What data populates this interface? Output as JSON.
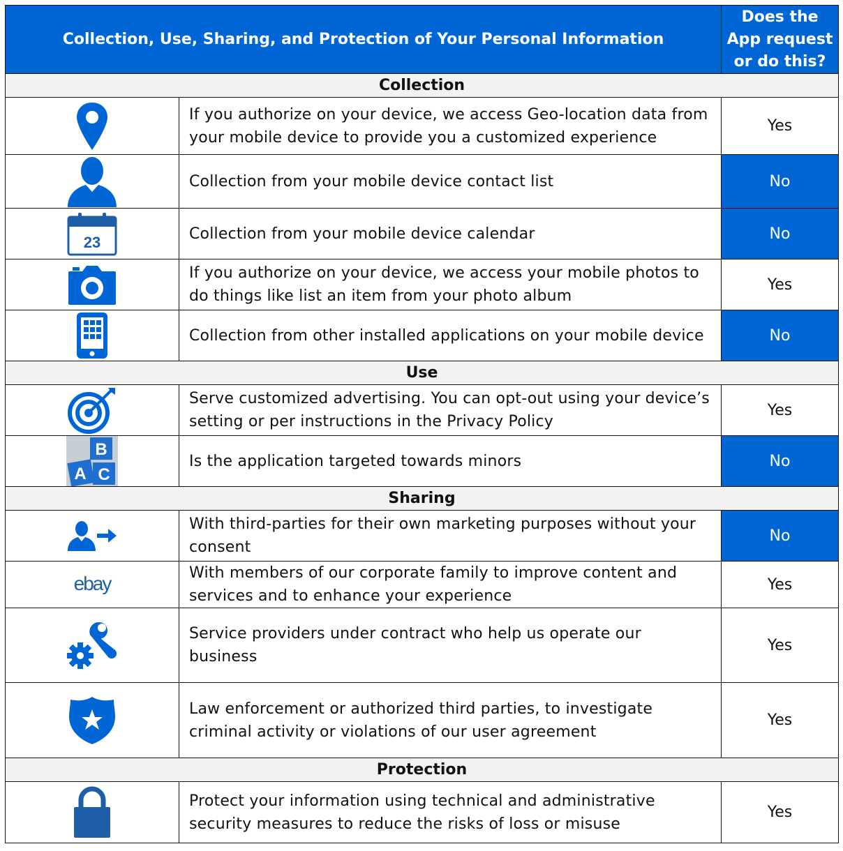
{
  "header": {
    "title": "Collection, Use, Sharing, and Protection of Your Personal Information",
    "answer_line1": "Does the",
    "answer_line2": "App request",
    "answer_line3": "or do this?"
  },
  "colors": {
    "accent": "#0066d6",
    "section_bg": "#f2f2f2",
    "border": "#111111"
  },
  "sections": [
    {
      "title": "Collection",
      "rows": [
        {
          "icon": "location-pin-icon",
          "text": "If you authorize on your device, we access Geo-location data from your mobile device to provide you a customized experience",
          "answer": "Yes"
        },
        {
          "icon": "contact-person-icon",
          "text": "Collection from your mobile device contact list",
          "answer": "No"
        },
        {
          "icon": "calendar-icon",
          "icon_label": "23",
          "text": "Collection from your mobile device calendar",
          "answer": "No"
        },
        {
          "icon": "camera-icon",
          "text": "If you authorize on your device, we access your mobile photos to do things like list an item from your photo album",
          "answer": "Yes"
        },
        {
          "icon": "mobile-apps-icon",
          "text": "Collection from other installed applications on your mobile device",
          "answer": "No"
        }
      ]
    },
    {
      "title": "Use",
      "rows": [
        {
          "icon": "target-icon",
          "text": "Serve customized advertising. You can opt-out using your device’s setting or per instructions in the Privacy Policy",
          "answer": "Yes"
        },
        {
          "icon": "abc-blocks-icon",
          "icon_labels": [
            "B",
            "A",
            "C"
          ],
          "text": "Is the application targeted towards minors",
          "answer": "No"
        }
      ]
    },
    {
      "title": "Sharing",
      "rows": [
        {
          "icon": "person-arrow-icon",
          "text": "With third-parties for their own marketing purposes without your consent",
          "answer": "No"
        },
        {
          "icon": "ebay-logo-icon",
          "icon_label": "ebay",
          "text": "With members of our corporate family to improve content and services and to enhance your experience",
          "answer": "Yes"
        },
        {
          "icon": "wrench-gear-icon",
          "text": "Service providers under contract who help us operate our business",
          "answer": "Yes"
        },
        {
          "icon": "police-badge-icon",
          "text": "Law enforcement or authorized third parties, to investigate criminal activity or violations of our user agreement",
          "answer": "Yes"
        }
      ]
    },
    {
      "title": "Protection",
      "rows": [
        {
          "icon": "padlock-icon",
          "text": "Protect your information using technical and administrative security measures to reduce the risks of loss or misuse",
          "answer": "Yes"
        }
      ]
    }
  ]
}
